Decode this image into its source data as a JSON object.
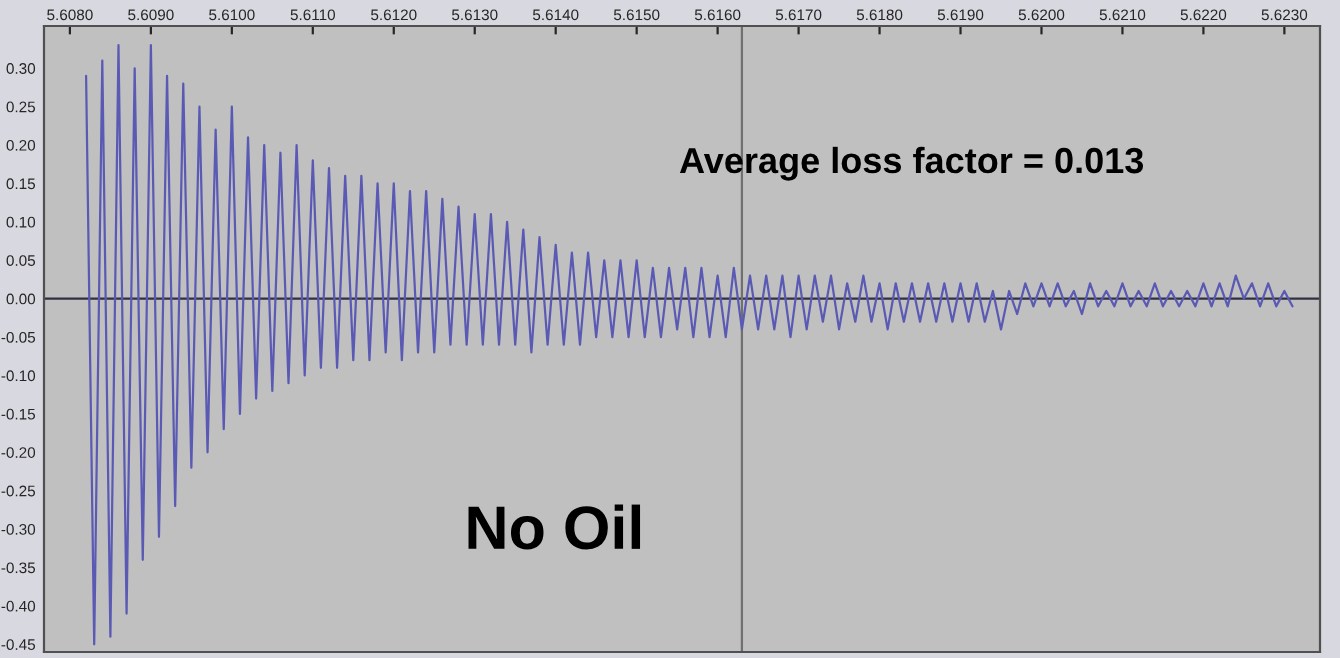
{
  "chart_data": {
    "type": "line",
    "annotations": [
      "Average loss factor = 0.013",
      "No Oil"
    ],
    "x": [
      5.6082,
      5.6083,
      5.6084,
      5.6085,
      5.6086,
      5.6087,
      5.6088,
      5.6089,
      5.609,
      5.6091,
      5.6092,
      5.6093,
      5.6094,
      5.6095,
      5.6096,
      5.6097,
      5.6098,
      5.6099,
      5.61,
      5.6101,
      5.6102,
      5.6103,
      5.6104,
      5.6105,
      5.6106,
      5.6107,
      5.6108,
      5.6109,
      5.611,
      5.6111,
      5.6112,
      5.6113,
      5.6114,
      5.6115,
      5.6116,
      5.6117,
      5.6118,
      5.6119,
      5.612,
      5.6121,
      5.6122,
      5.6123,
      5.6124,
      5.6125,
      5.6126,
      5.6127,
      5.6128,
      5.6129,
      5.613,
      5.6131,
      5.6132,
      5.6133,
      5.6134,
      5.6135,
      5.6136,
      5.6137,
      5.6138,
      5.6139,
      5.614,
      5.6141,
      5.6142,
      5.6143,
      5.6144,
      5.6145,
      5.6146,
      5.6147,
      5.6148,
      5.6149,
      5.615,
      5.6151,
      5.6152,
      5.6153,
      5.6154,
      5.6155,
      5.6156,
      5.6157,
      5.6158,
      5.6159,
      5.616,
      5.6161,
      5.6162,
      5.6163,
      5.6164,
      5.6165,
      5.6166,
      5.6167,
      5.6168,
      5.6169,
      5.617,
      5.6171,
      5.6172,
      5.6173,
      5.6174,
      5.6175,
      5.6176,
      5.6177,
      5.6178,
      5.6179,
      5.618,
      5.6181,
      5.6182,
      5.6183,
      5.6184,
      5.6185,
      5.6186,
      5.6187,
      5.6188,
      5.6189,
      5.619,
      5.6191,
      5.6192,
      5.6193,
      5.6194,
      5.6195,
      5.6196,
      5.6197,
      5.6198,
      5.6199,
      5.62,
      5.6201,
      5.6202,
      5.6203,
      5.6204,
      5.6205,
      5.6206,
      5.6207,
      5.6208,
      5.6209,
      5.621,
      5.6211,
      5.6212,
      5.6213,
      5.6214,
      5.6215,
      5.6216,
      5.6217,
      5.6218,
      5.6219,
      5.622,
      5.6221,
      5.6222,
      5.6223,
      5.6224,
      5.6225,
      5.6226,
      5.6227,
      5.6228,
      5.6229,
      5.623,
      5.6231
    ],
    "series": [
      {
        "color": "#5a5ab4",
        "values": [
          0.29,
          -0.45,
          0.31,
          -0.44,
          0.33,
          -0.41,
          0.3,
          -0.34,
          0.33,
          -0.31,
          0.29,
          -0.27,
          0.28,
          -0.22,
          0.25,
          -0.2,
          0.22,
          -0.17,
          0.25,
          -0.15,
          0.21,
          -0.13,
          0.2,
          -0.12,
          0.19,
          -0.11,
          0.2,
          -0.1,
          0.18,
          -0.09,
          0.17,
          -0.09,
          0.16,
          -0.08,
          0.16,
          -0.08,
          0.15,
          -0.07,
          0.15,
          -0.08,
          0.14,
          -0.07,
          0.14,
          -0.07,
          0.13,
          -0.06,
          0.12,
          -0.06,
          0.11,
          -0.06,
          0.11,
          -0.06,
          0.1,
          -0.06,
          0.09,
          -0.07,
          0.08,
          -0.06,
          0.07,
          -0.06,
          0.06,
          -0.06,
          0.06,
          -0.05,
          0.05,
          -0.05,
          0.05,
          -0.05,
          0.05,
          -0.05,
          0.04,
          -0.05,
          0.04,
          -0.04,
          0.04,
          -0.05,
          0.04,
          -0.05,
          0.03,
          -0.05,
          0.04,
          -0.04,
          0.03,
          -0.04,
          0.03,
          -0.04,
          0.03,
          -0.05,
          0.03,
          -0.04,
          0.03,
          -0.03,
          0.03,
          -0.04,
          0.02,
          -0.03,
          0.03,
          -0.03,
          0.02,
          -0.04,
          0.02,
          -0.03,
          0.02,
          -0.03,
          0.02,
          -0.03,
          0.02,
          -0.03,
          0.02,
          -0.03,
          0.02,
          -0.03,
          0.01,
          -0.04,
          0.01,
          -0.02,
          0.02,
          -0.01,
          0.02,
          -0.01,
          0.02,
          -0.01,
          0.01,
          -0.02,
          0.02,
          -0.01,
          0.01,
          -0.01,
          0.02,
          -0.01,
          0.01,
          -0.01,
          0.02,
          -0.01,
          0.01,
          -0.01,
          0.01,
          -0.01,
          0.02,
          -0.01,
          0.02,
          -0.01,
          0.03,
          0.0,
          0.02,
          -0.01,
          0.02,
          -0.01,
          0.01,
          -0.01
        ]
      }
    ],
    "xlim": [
      5.60768,
      5.62344
    ],
    "ylim": [
      -0.46,
      0.355
    ],
    "xticks": [
      {
        "value": 5.608,
        "label": "5.6080"
      },
      {
        "value": 5.609,
        "label": "5.6090"
      },
      {
        "value": 5.61,
        "label": "5.6100"
      },
      {
        "value": 5.611,
        "label": "5.6110"
      },
      {
        "value": 5.612,
        "label": "5.6120"
      },
      {
        "value": 5.613,
        "label": "5.6130"
      },
      {
        "value": 5.614,
        "label": "5.6140"
      },
      {
        "value": 5.615,
        "label": "5.6150"
      },
      {
        "value": 5.616,
        "label": "5.6160"
      },
      {
        "value": 5.617,
        "label": "5.6170"
      },
      {
        "value": 5.618,
        "label": "5.6180"
      },
      {
        "value": 5.619,
        "label": "5.6190"
      },
      {
        "value": 5.62,
        "label": "5.6200"
      },
      {
        "value": 5.621,
        "label": "5.6210"
      },
      {
        "value": 5.622,
        "label": "5.6220"
      },
      {
        "value": 5.623,
        "label": "5.6230"
      }
    ],
    "yticks": [
      {
        "value": 0.3,
        "label": "0.30"
      },
      {
        "value": 0.25,
        "label": "0.25"
      },
      {
        "value": 0.2,
        "label": "0.20"
      },
      {
        "value": 0.15,
        "label": "0.15"
      },
      {
        "value": 0.1,
        "label": "0.10"
      },
      {
        "value": 0.05,
        "label": "0.05"
      },
      {
        "value": 0,
        "label": "0.00"
      },
      {
        "value": -0.05,
        "label": "-0.05"
      },
      {
        "value": -0.1,
        "label": "-0.10"
      },
      {
        "value": -0.15,
        "label": "-0.15"
      },
      {
        "value": -0.2,
        "label": "-0.20"
      },
      {
        "value": -0.25,
        "label": "-0.25"
      },
      {
        "value": -0.3,
        "label": "-0.30"
      },
      {
        "value": -0.35,
        "label": "-0.35"
      },
      {
        "value": -0.4,
        "label": "-0.40"
      },
      {
        "value": -0.45,
        "label": "-0.45"
      }
    ],
    "ref_lines": [
      {
        "axis": "y",
        "value": 0,
        "color": "#303040"
      },
      {
        "axis": "x",
        "value": 5.6163,
        "color": "#707070"
      }
    ]
  }
}
